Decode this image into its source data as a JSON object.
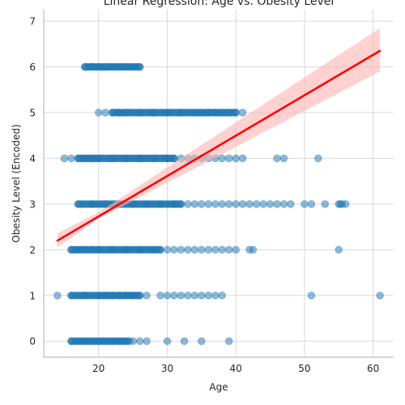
{
  "chart_data": {
    "type": "scatter",
    "title": "Linear Regression: Age vs. Obesity Level",
    "xlabel": "Age",
    "ylabel": "Obesity Level (Encoded)",
    "xlim": [
      12,
      63
    ],
    "ylim": [
      -0.35,
      7.25
    ],
    "x_ticks": [
      20,
      30,
      40,
      50,
      60
    ],
    "y_ticks": [
      0,
      1,
      2,
      3,
      4,
      5,
      6,
      7
    ],
    "grid": true,
    "legend": "none",
    "colors": {
      "points": "#1f77b4",
      "regression_line": "#ff0000",
      "confidence_band": "#ffb3b3"
    },
    "regression": {
      "x": [
        14,
        61
      ],
      "y": [
        2.2,
        6.35
      ],
      "ci_lower": [
        2.05,
        5.9
      ],
      "ci_upper": [
        2.36,
        6.85
      ],
      "ci_at_x20": [
        2.68,
        2.82
      ]
    },
    "point_groups": [
      {
        "y": 0,
        "dense_ranges": [
          [
            16,
            24.5
          ]
        ],
        "points": [
          16,
          17,
          18,
          19,
          20,
          21,
          22,
          23,
          24,
          25,
          26,
          27,
          30,
          32.5,
          35,
          39
        ]
      },
      {
        "y": 1,
        "dense_ranges": [
          [
            16,
            26
          ]
        ],
        "points": [
          14,
          16,
          18,
          20,
          21,
          22,
          23,
          24,
          25,
          26,
          27,
          29,
          30,
          31,
          32,
          33,
          34,
          35,
          36,
          37,
          38,
          51,
          61
        ]
      },
      {
        "y": 2,
        "dense_ranges": [
          [
            16,
            29
          ]
        ],
        "points": [
          16,
          17,
          18,
          19,
          20,
          22,
          24,
          26,
          28,
          29,
          30,
          31,
          32,
          33,
          34,
          35,
          36,
          37,
          38,
          39,
          40,
          42,
          42.5,
          55
        ]
      },
      {
        "y": 3,
        "dense_ranges": [
          [
            17,
            32
          ]
        ],
        "points": [
          17,
          19,
          21,
          23,
          25,
          27,
          29,
          31,
          32,
          33,
          34,
          35,
          36,
          37,
          38,
          39,
          40,
          41,
          42,
          43,
          44,
          45,
          46,
          47,
          48,
          50,
          51,
          53,
          55,
          55.2,
          55.5,
          56
        ]
      },
      {
        "y": 4,
        "dense_ranges": [
          [
            17,
            31
          ]
        ],
        "points": [
          15,
          16,
          17,
          18,
          19,
          20,
          22,
          24,
          26,
          28,
          30,
          31,
          32,
          33,
          34,
          35,
          36,
          37,
          38,
          39,
          40,
          41,
          46,
          47,
          52
        ]
      },
      {
        "y": 5,
        "dense_ranges": [
          [
            22,
            40
          ]
        ],
        "points": [
          20,
          21,
          22,
          23,
          24,
          26,
          28,
          30,
          32,
          34,
          35,
          36,
          37,
          38,
          39,
          40,
          41
        ]
      },
      {
        "y": 6,
        "dense_ranges": [
          [
            18,
            26
          ]
        ],
        "points": [
          18,
          19,
          20,
          21,
          22,
          23,
          24,
          25,
          26
        ]
      }
    ]
  }
}
